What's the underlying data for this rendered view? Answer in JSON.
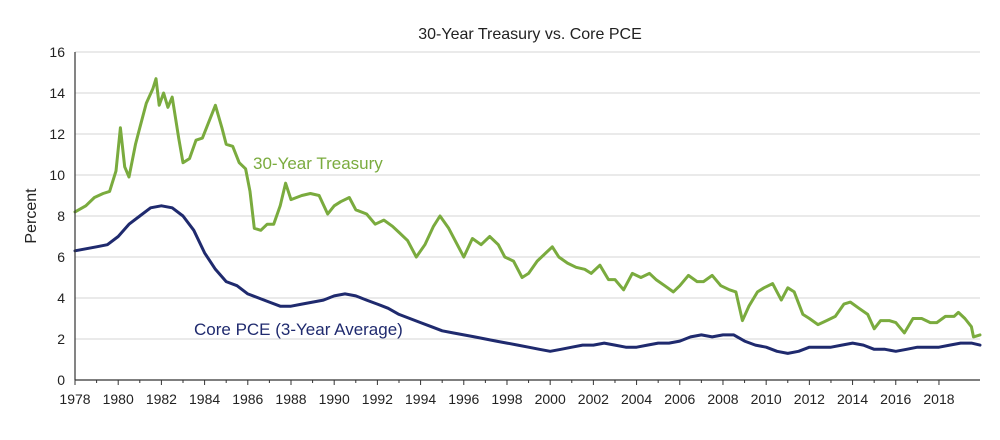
{
  "chart_data": {
    "type": "line",
    "title": "30-Year Treasury vs. Core PCE",
    "xlabel": "",
    "ylabel": "Percent",
    "xlim": [
      1978,
      2019.9
    ],
    "ylim": [
      0,
      16
    ],
    "grid": true,
    "x_ticks": [
      "1978",
      "1980",
      "1982",
      "1984",
      "1986",
      "1988",
      "1990",
      "1992",
      "1994",
      "1996",
      "1998",
      "2000",
      "2002",
      "2004",
      "2006",
      "2008",
      "2010",
      "2012",
      "2014",
      "2016",
      "2018"
    ],
    "y_ticks": [
      "0",
      "2",
      "4",
      "6",
      "8",
      "10",
      "12",
      "14",
      "16"
    ],
    "series": [
      {
        "name": "30-Year Treasury",
        "label": "30-Year Treasury",
        "color": "#7aab3e",
        "points": [
          [
            1978.0,
            8.2
          ],
          [
            1978.5,
            8.5
          ],
          [
            1978.9,
            8.9
          ],
          [
            1979.3,
            9.1
          ],
          [
            1979.6,
            9.2
          ],
          [
            1979.9,
            10.2
          ],
          [
            1980.1,
            12.3
          ],
          [
            1980.3,
            10.4
          ],
          [
            1980.5,
            9.9
          ],
          [
            1980.8,
            11.5
          ],
          [
            1981.0,
            12.3
          ],
          [
            1981.3,
            13.5
          ],
          [
            1981.6,
            14.2
          ],
          [
            1981.75,
            14.7
          ],
          [
            1981.9,
            13.4
          ],
          [
            1982.1,
            14.0
          ],
          [
            1982.3,
            13.3
          ],
          [
            1982.5,
            13.8
          ],
          [
            1982.8,
            11.8
          ],
          [
            1983.0,
            10.6
          ],
          [
            1983.3,
            10.8
          ],
          [
            1983.6,
            11.7
          ],
          [
            1983.9,
            11.8
          ],
          [
            1984.2,
            12.6
          ],
          [
            1984.5,
            13.4
          ],
          [
            1984.8,
            12.3
          ],
          [
            1985.0,
            11.5
          ],
          [
            1985.3,
            11.4
          ],
          [
            1985.6,
            10.6
          ],
          [
            1985.9,
            10.3
          ],
          [
            1986.1,
            9.2
          ],
          [
            1986.3,
            7.4
          ],
          [
            1986.6,
            7.3
          ],
          [
            1986.9,
            7.6
          ],
          [
            1987.2,
            7.6
          ],
          [
            1987.5,
            8.5
          ],
          [
            1987.75,
            9.6
          ],
          [
            1988.0,
            8.8
          ],
          [
            1988.5,
            9.0
          ],
          [
            1988.9,
            9.1
          ],
          [
            1989.3,
            9.0
          ],
          [
            1989.7,
            8.1
          ],
          [
            1990.0,
            8.5
          ],
          [
            1990.3,
            8.7
          ],
          [
            1990.7,
            8.9
          ],
          [
            1991.0,
            8.3
          ],
          [
            1991.5,
            8.1
          ],
          [
            1991.9,
            7.6
          ],
          [
            1992.3,
            7.8
          ],
          [
            1992.7,
            7.5
          ],
          [
            1993.0,
            7.2
          ],
          [
            1993.4,
            6.8
          ],
          [
            1993.8,
            6.0
          ],
          [
            1994.2,
            6.6
          ],
          [
            1994.6,
            7.5
          ],
          [
            1994.9,
            8.0
          ],
          [
            1995.3,
            7.4
          ],
          [
            1995.7,
            6.6
          ],
          [
            1996.0,
            6.0
          ],
          [
            1996.4,
            6.9
          ],
          [
            1996.8,
            6.6
          ],
          [
            1997.2,
            7.0
          ],
          [
            1997.6,
            6.6
          ],
          [
            1997.9,
            6.0
          ],
          [
            1998.3,
            5.8
          ],
          [
            1998.7,
            5.0
          ],
          [
            1999.0,
            5.2
          ],
          [
            1999.4,
            5.8
          ],
          [
            1999.8,
            6.2
          ],
          [
            2000.1,
            6.5
          ],
          [
            2000.4,
            6.0
          ],
          [
            2000.8,
            5.7
          ],
          [
            2001.2,
            5.5
          ],
          [
            2001.6,
            5.4
          ],
          [
            2001.9,
            5.2
          ],
          [
            2002.3,
            5.6
          ],
          [
            2002.7,
            4.9
          ],
          [
            2003.0,
            4.9
          ],
          [
            2003.4,
            4.4
          ],
          [
            2003.8,
            5.2
          ],
          [
            2004.2,
            5.0
          ],
          [
            2004.6,
            5.2
          ],
          [
            2004.9,
            4.9
          ],
          [
            2005.3,
            4.6
          ],
          [
            2005.7,
            4.3
          ],
          [
            2006.0,
            4.6
          ],
          [
            2006.4,
            5.1
          ],
          [
            2006.8,
            4.8
          ],
          [
            2007.1,
            4.8
          ],
          [
            2007.5,
            5.1
          ],
          [
            2007.9,
            4.6
          ],
          [
            2008.3,
            4.4
          ],
          [
            2008.6,
            4.3
          ],
          [
            2008.9,
            2.9
          ],
          [
            2009.2,
            3.6
          ],
          [
            2009.6,
            4.3
          ],
          [
            2009.9,
            4.5
          ],
          [
            2010.3,
            4.7
          ],
          [
            2010.7,
            3.9
          ],
          [
            2011.0,
            4.5
          ],
          [
            2011.3,
            4.3
          ],
          [
            2011.7,
            3.2
          ],
          [
            2012.0,
            3.0
          ],
          [
            2012.4,
            2.7
          ],
          [
            2012.8,
            2.9
          ],
          [
            2013.2,
            3.1
          ],
          [
            2013.6,
            3.7
          ],
          [
            2013.9,
            3.8
          ],
          [
            2014.3,
            3.5
          ],
          [
            2014.7,
            3.2
          ],
          [
            2015.0,
            2.5
          ],
          [
            2015.3,
            2.9
          ],
          [
            2015.7,
            2.9
          ],
          [
            2016.0,
            2.8
          ],
          [
            2016.4,
            2.3
          ],
          [
            2016.8,
            3.0
          ],
          [
            2017.2,
            3.0
          ],
          [
            2017.6,
            2.8
          ],
          [
            2017.9,
            2.8
          ],
          [
            2018.3,
            3.1
          ],
          [
            2018.7,
            3.1
          ],
          [
            2018.9,
            3.3
          ],
          [
            2019.2,
            3.0
          ],
          [
            2019.5,
            2.6
          ],
          [
            2019.6,
            2.1
          ],
          [
            2019.9,
            2.2
          ]
        ]
      },
      {
        "name": "Core PCE (3-Year Average)",
        "label": "Core PCE (3-Year Average)",
        "color": "#1f2a6e",
        "points": [
          [
            1978.0,
            6.3
          ],
          [
            1978.5,
            6.4
          ],
          [
            1979.0,
            6.5
          ],
          [
            1979.5,
            6.6
          ],
          [
            1980.0,
            7.0
          ],
          [
            1980.5,
            7.6
          ],
          [
            1981.0,
            8.0
          ],
          [
            1981.5,
            8.4
          ],
          [
            1982.0,
            8.5
          ],
          [
            1982.5,
            8.4
          ],
          [
            1983.0,
            8.0
          ],
          [
            1983.5,
            7.3
          ],
          [
            1984.0,
            6.2
          ],
          [
            1984.5,
            5.4
          ],
          [
            1985.0,
            4.8
          ],
          [
            1985.5,
            4.6
          ],
          [
            1986.0,
            4.2
          ],
          [
            1986.5,
            4.0
          ],
          [
            1987.0,
            3.8
          ],
          [
            1987.5,
            3.6
          ],
          [
            1988.0,
            3.6
          ],
          [
            1988.5,
            3.7
          ],
          [
            1989.0,
            3.8
          ],
          [
            1989.5,
            3.9
          ],
          [
            1990.0,
            4.1
          ],
          [
            1990.5,
            4.2
          ],
          [
            1991.0,
            4.1
          ],
          [
            1991.5,
            3.9
          ],
          [
            1992.0,
            3.7
          ],
          [
            1992.5,
            3.5
          ],
          [
            1993.0,
            3.2
          ],
          [
            1993.5,
            3.0
          ],
          [
            1994.0,
            2.8
          ],
          [
            1994.5,
            2.6
          ],
          [
            1995.0,
            2.4
          ],
          [
            1995.5,
            2.3
          ],
          [
            1996.0,
            2.2
          ],
          [
            1996.5,
            2.1
          ],
          [
            1997.0,
            2.0
          ],
          [
            1997.5,
            1.9
          ],
          [
            1998.0,
            1.8
          ],
          [
            1998.5,
            1.7
          ],
          [
            1999.0,
            1.6
          ],
          [
            1999.5,
            1.5
          ],
          [
            2000.0,
            1.4
          ],
          [
            2000.5,
            1.5
          ],
          [
            2001.0,
            1.6
          ],
          [
            2001.5,
            1.7
          ],
          [
            2002.0,
            1.7
          ],
          [
            2002.5,
            1.8
          ],
          [
            2003.0,
            1.7
          ],
          [
            2003.5,
            1.6
          ],
          [
            2004.0,
            1.6
          ],
          [
            2004.5,
            1.7
          ],
          [
            2005.0,
            1.8
          ],
          [
            2005.5,
            1.8
          ],
          [
            2006.0,
            1.9
          ],
          [
            2006.5,
            2.1
          ],
          [
            2007.0,
            2.2
          ],
          [
            2007.5,
            2.1
          ],
          [
            2008.0,
            2.2
          ],
          [
            2008.5,
            2.2
          ],
          [
            2009.0,
            1.9
          ],
          [
            2009.5,
            1.7
          ],
          [
            2010.0,
            1.6
          ],
          [
            2010.5,
            1.4
          ],
          [
            2011.0,
            1.3
          ],
          [
            2011.5,
            1.4
          ],
          [
            2012.0,
            1.6
          ],
          [
            2012.5,
            1.6
          ],
          [
            2013.0,
            1.6
          ],
          [
            2013.5,
            1.7
          ],
          [
            2014.0,
            1.8
          ],
          [
            2014.5,
            1.7
          ],
          [
            2015.0,
            1.5
          ],
          [
            2015.5,
            1.5
          ],
          [
            2016.0,
            1.4
          ],
          [
            2016.5,
            1.5
          ],
          [
            2017.0,
            1.6
          ],
          [
            2017.5,
            1.6
          ],
          [
            2018.0,
            1.6
          ],
          [
            2018.5,
            1.7
          ],
          [
            2019.0,
            1.8
          ],
          [
            2019.5,
            1.8
          ],
          [
            2019.9,
            1.7
          ]
        ]
      }
    ]
  }
}
